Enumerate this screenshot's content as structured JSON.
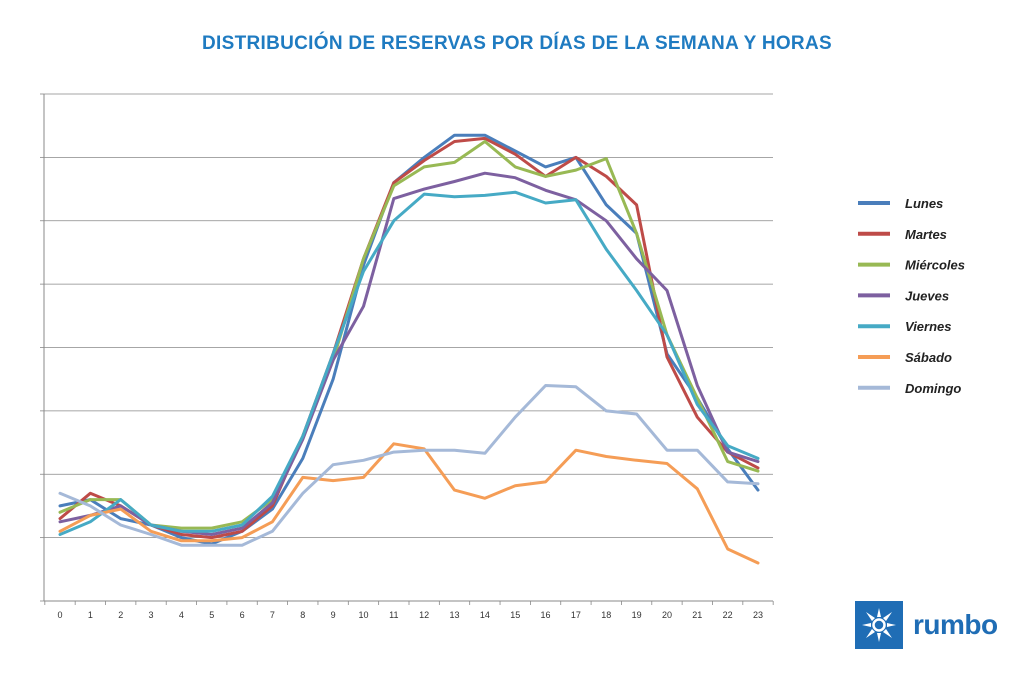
{
  "chart_data": {
    "type": "line",
    "title": "DISTRIBUCIÓN DE RESERVAS POR DÍAS DE LA SEMANA Y HORAS",
    "x": [
      0,
      1,
      2,
      3,
      4,
      5,
      6,
      7,
      8,
      9,
      10,
      11,
      12,
      13,
      14,
      15,
      16,
      17,
      18,
      19,
      20,
      21,
      22,
      23
    ],
    "categories": [
      "0",
      "1",
      "2",
      "3",
      "4",
      "5",
      "6",
      "7",
      "8",
      "9",
      "10",
      "11",
      "12",
      "13",
      "14",
      "15",
      "16",
      "17",
      "18",
      "19",
      "20",
      "21",
      "22",
      "23"
    ],
    "ylim": [
      0,
      8
    ],
    "grid": true,
    "legend_position": "right",
    "series": [
      {
        "name": "Lunes",
        "color": "#4a7ebb",
        "values": [
          1.5,
          1.6,
          1.3,
          1.2,
          1.0,
          0.9,
          1.1,
          1.45,
          2.25,
          3.5,
          5.3,
          6.6,
          7.0,
          7.35,
          7.35,
          7.1,
          6.85,
          7.0,
          6.25,
          5.8,
          3.9,
          3.2,
          2.4,
          1.75
        ]
      },
      {
        "name": "Martes",
        "color": "#be4b48",
        "values": [
          1.3,
          1.7,
          1.5,
          1.2,
          1.05,
          1.0,
          1.1,
          1.5,
          2.6,
          3.9,
          5.4,
          6.6,
          6.95,
          7.25,
          7.3,
          7.05,
          6.7,
          7.0,
          6.7,
          6.25,
          3.85,
          2.9,
          2.35,
          2.1
        ]
      },
      {
        "name": "Miércoles",
        "color": "#98b954",
        "values": [
          1.4,
          1.6,
          1.6,
          1.2,
          1.15,
          1.15,
          1.25,
          1.6,
          2.6,
          3.8,
          5.4,
          6.55,
          6.85,
          6.92,
          7.25,
          6.85,
          6.7,
          6.8,
          6.98,
          5.8,
          4.2,
          3.2,
          2.2,
          2.05
        ]
      },
      {
        "name": "Jueves",
        "color": "#7d60a0",
        "values": [
          1.25,
          1.35,
          1.5,
          1.2,
          1.1,
          1.05,
          1.15,
          1.55,
          2.55,
          3.8,
          4.65,
          6.35,
          6.5,
          6.62,
          6.75,
          6.68,
          6.48,
          6.33,
          6.0,
          5.4,
          4.9,
          3.4,
          2.35,
          2.2
        ]
      },
      {
        "name": "Viernes",
        "color": "#46aac5",
        "values": [
          1.05,
          1.25,
          1.6,
          1.2,
          1.1,
          1.1,
          1.2,
          1.65,
          2.6,
          3.9,
          5.2,
          6.0,
          6.42,
          6.38,
          6.4,
          6.45,
          6.28,
          6.33,
          5.55,
          4.9,
          4.2,
          3.1,
          2.45,
          2.25
        ]
      },
      {
        "name": "Sábado",
        "color": "#f59d56",
        "values": [
          1.1,
          1.35,
          1.45,
          1.1,
          0.95,
          0.95,
          1.0,
          1.25,
          1.95,
          1.9,
          1.95,
          2.48,
          2.4,
          1.75,
          1.62,
          1.82,
          1.88,
          2.38,
          2.28,
          2.22,
          2.17,
          1.77,
          0.82,
          0.6
        ]
      },
      {
        "name": "Domingo",
        "color": "#a5b9d8",
        "values": [
          1.7,
          1.5,
          1.2,
          1.05,
          0.88,
          0.88,
          0.88,
          1.1,
          1.7,
          2.15,
          2.22,
          2.35,
          2.38,
          2.38,
          2.33,
          2.9,
          3.4,
          3.38,
          3.0,
          2.95,
          2.38,
          2.38,
          1.88,
          1.85
        ]
      }
    ]
  },
  "logo": {
    "text": "rumbo",
    "icon": "star-burst-icon",
    "color": "#1f6db5"
  },
  "colors": {
    "title": "#1f7bc1",
    "grid": "#888888"
  }
}
